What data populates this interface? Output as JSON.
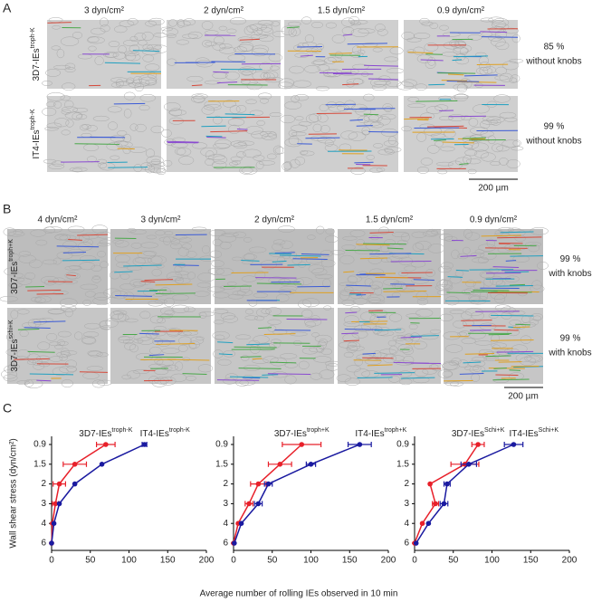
{
  "panel_a": {
    "label": "A",
    "columns": [
      "3 dyn/cm²",
      "2 dyn/cm²",
      "1.5 dyn/cm²",
      "0.9 dyn/cm²"
    ],
    "rows": [
      {
        "name": "3D7-IEs",
        "sup": "troph-K",
        "note": [
          "85 %",
          "without knobs"
        ]
      },
      {
        "name": "IT4-IEs",
        "sup": "troph-K",
        "note": [
          "99 %",
          "without knobs"
        ]
      }
    ],
    "scale_bar": "200 µm"
  },
  "panel_b": {
    "label": "B",
    "columns": [
      "4 dyn/cm²",
      "3 dyn/cm²",
      "2 dyn/cm²",
      "1.5 dyn/cm²",
      "0.9 dyn/cm²"
    ],
    "rows": [
      {
        "name": "3D7-IEs",
        "sup": "troph+K",
        "note": [
          "99 %",
          "with knobs"
        ]
      },
      {
        "name": "3D7-IEs",
        "sup": "schi+K",
        "note": [
          "99 %",
          "with knobs"
        ]
      }
    ],
    "scale_bar": "200 µm"
  },
  "panel_c": {
    "label": "C",
    "y_label": "Wall shear stress  (dyn/cm²)",
    "x_label": "Average number of rolling IEs observed in 10 min"
  },
  "chart_data": [
    {
      "type": "line",
      "categories": [
        "0.9",
        "1.5",
        "2",
        "3",
        "4",
        "6"
      ],
      "xlim": [
        0,
        200
      ],
      "xticks": [
        0,
        50,
        100,
        150,
        200
      ],
      "series": [
        {
          "name": "3D7-IEs",
          "name_sup": "troph-K",
          "color": "#e8202a",
          "values": [
            70,
            30,
            10,
            5,
            1,
            0
          ],
          "errors": [
            12,
            15,
            8,
            4,
            null,
            null
          ]
        },
        {
          "name": "IT4-IEs",
          "name_sup": "troph-K",
          "color": "#1a1aa0",
          "values": [
            120,
            65,
            30,
            10,
            3,
            0
          ],
          "errors": [
            3,
            null,
            null,
            null,
            null,
            null
          ]
        }
      ]
    },
    {
      "type": "line",
      "categories": [
        "0.9",
        "1.5",
        "2",
        "3",
        "4",
        "6"
      ],
      "xlim": [
        0,
        200
      ],
      "xticks": [
        0,
        50,
        100,
        150,
        200
      ],
      "series": [
        {
          "name": "3D7-IEs",
          "name_sup": "troph+K",
          "color": "#e8202a",
          "values": [
            88,
            60,
            32,
            20,
            6,
            0
          ],
          "errors": [
            25,
            15,
            10,
            5,
            null,
            null
          ]
        },
        {
          "name": "IT4-IEs",
          "name_sup": "troph+K",
          "color": "#1a1aa0",
          "values": [
            163,
            100,
            45,
            32,
            10,
            1
          ],
          "errors": [
            15,
            6,
            5,
            5,
            null,
            null
          ]
        }
      ]
    },
    {
      "type": "line",
      "categories": [
        "0.9",
        "1.5",
        "2",
        "3",
        "4",
        "6"
      ],
      "xlim": [
        0,
        200
      ],
      "xticks": [
        0,
        50,
        100,
        150,
        200
      ],
      "series": [
        {
          "name": "3D7-IEs",
          "name_sup": "Schi+K",
          "color": "#e8202a",
          "values": [
            82,
            65,
            20,
            27,
            10,
            0
          ],
          "errors": [
            8,
            18,
            null,
            4,
            null,
            null
          ]
        },
        {
          "name": "IT4-IEs",
          "name_sup": "Schi+K",
          "color": "#1a1aa0",
          "values": [
            128,
            70,
            42,
            38,
            18,
            2
          ],
          "errors": [
            12,
            10,
            4,
            5,
            null,
            null
          ]
        }
      ]
    }
  ]
}
